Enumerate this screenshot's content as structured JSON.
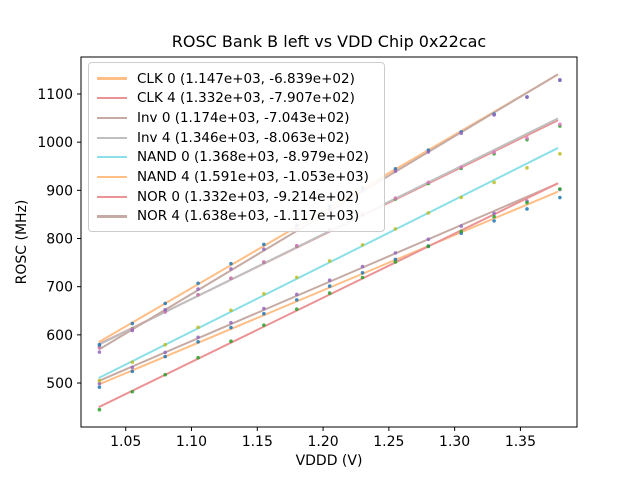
{
  "window": {
    "background": "#ffffff"
  },
  "chart_data": {
    "type": "scatter",
    "title": "ROSC Bank B left vs VDD Chip 0x22cac",
    "xlabel": "VDDD (V)",
    "ylabel": "ROSC (MHz)",
    "xlim": [
      1.016,
      1.393
    ],
    "ylim": [
      408.7,
      1176.8
    ],
    "grid": false,
    "legend_position": "upper left",
    "axis_color": "#000000",
    "xticks": [
      {
        "v": 1.05,
        "label": "1.05"
      },
      {
        "v": 1.1,
        "label": "1.10"
      },
      {
        "v": 1.15,
        "label": "1.15"
      },
      {
        "v": 1.2,
        "label": "1.20"
      },
      {
        "v": 1.25,
        "label": "1.25"
      },
      {
        "v": 1.3,
        "label": "1.30"
      },
      {
        "v": 1.35,
        "label": "1.35"
      }
    ],
    "yticks": [
      {
        "v": 500,
        "label": "500"
      },
      {
        "v": 600,
        "label": "600"
      },
      {
        "v": 700,
        "label": "700"
      },
      {
        "v": 800,
        "label": "800"
      },
      {
        "v": 900,
        "label": "900"
      },
      {
        "v": 1000,
        "label": "1000"
      },
      {
        "v": 1100,
        "label": "1100"
      }
    ],
    "fit_x_range": [
      1.03,
      1.378
    ],
    "x": [
      1.03,
      1.055,
      1.08,
      1.105,
      1.13,
      1.155,
      1.18,
      1.205,
      1.23,
      1.255,
      1.28,
      1.305,
      1.33,
      1.355,
      1.38
    ],
    "series": [
      {
        "name": "CLK 0",
        "legend_label": "CLK 0 (1.147e+03, -6.839e+02)",
        "slope": 1147,
        "intercept": -683.9,
        "line_color": "#ffbf87",
        "marker_color": "#1f77b4",
        "y": [
          491.5,
          524.2,
          554.9,
          585.5,
          615.2,
          643.9,
          672.6,
          701.2,
          728.9,
          756.6,
          784.3,
          810.9,
          836.6,
          861.3,
          885.0
        ]
      },
      {
        "name": "CLK 4",
        "legend_label": "CLK 4 (1.332e+03, -7.907e+02)",
        "slope": 1332,
        "intercept": -790.7,
        "line_color": "#eb9394",
        "marker_color": "#2ca02c",
        "y": [
          575.3,
          612.6,
          647.9,
          683.2,
          717.5,
          750.8,
          784.1,
          817.4,
          849.7,
          882.0,
          914.3,
          945.6,
          975.9,
          1005.2,
          1033.5
        ]
      },
      {
        "name": "Inv 0",
        "legend_label": "Inv 0 (1.174e+03, -7.043e+02)",
        "slope": 1174,
        "intercept": -704.3,
        "line_color": "#c6aba5",
        "marker_color": "#9467bd",
        "y": [
          498.9,
          532.3,
          563.6,
          595.0,
          625.3,
          654.7,
          684.0,
          713.4,
          741.7,
          770.1,
          798.4,
          825.8,
          852.1,
          877.5,
          901.8
        ]
      },
      {
        "name": "Inv 4",
        "legend_label": "Inv 4 (1.346e+03, -8.063e+02)",
        "slope": 1346,
        "intercept": -806.3,
        "line_color": "#bfbfbf",
        "marker_color": "#e377c2",
        "y": [
          574.1,
          611.7,
          647.4,
          683.0,
          717.7,
          751.3,
          785.0,
          818.6,
          851.3,
          883.9,
          916.6,
          948.2,
          978.9,
          1008.5,
          1037.2
        ]
      },
      {
        "name": "NAND 0",
        "legend_label": "NAND 0 (1.368e+03, -8.979e+02)",
        "slope": 1368,
        "intercept": -897.9,
        "line_color": "#8bdfe7",
        "marker_color": "#bcbd22",
        "y": [
          505.1,
          543.3,
          579.5,
          615.7,
          650.9,
          685.1,
          719.3,
          753.5,
          786.7,
          819.9,
          853.1,
          885.3,
          916.5,
          946.7,
          975.9
        ]
      },
      {
        "name": "NAND 4",
        "legend_label": "NAND 4 (1.591e+03, -1.053e+03)",
        "slope": 1591,
        "intercept": -1053,
        "line_color": "#ffbf87",
        "marker_color": "#1f77b4",
        "y": [
          579.7,
          623.5,
          665.3,
          707.1,
          747.8,
          787.6,
          827.4,
          867.2,
          905.9,
          944.7,
          983.5,
          1021.3,
          1058.0,
          1093.8,
          1128.6
        ]
      },
      {
        "name": "NOR 0",
        "legend_label": "NOR 0 (1.332e+03, -9.214e+02)",
        "slope": 1332,
        "intercept": -921.4,
        "line_color": "#eb9394",
        "marker_color": "#2ca02c",
        "y": [
          444.6,
          481.9,
          517.2,
          552.5,
          586.8,
          620.1,
          653.4,
          686.7,
          719.0,
          751.3,
          783.6,
          814.9,
          845.2,
          874.5,
          902.8
        ]
      },
      {
        "name": "NOR 4",
        "legend_label": "NOR 4 (1.638e+03, -1.117e+03)",
        "slope": 1638,
        "intercept": -1117,
        "line_color": "#c6aba5",
        "marker_color": "#9467bd",
        "y": [
          564.1,
          609.1,
          652.0,
          695.0,
          736.9,
          777.9,
          818.8,
          859.8,
          899.7,
          939.7,
          979.6,
          1018.6,
          1056.5,
          1093.5,
          1129.4
        ]
      }
    ]
  }
}
